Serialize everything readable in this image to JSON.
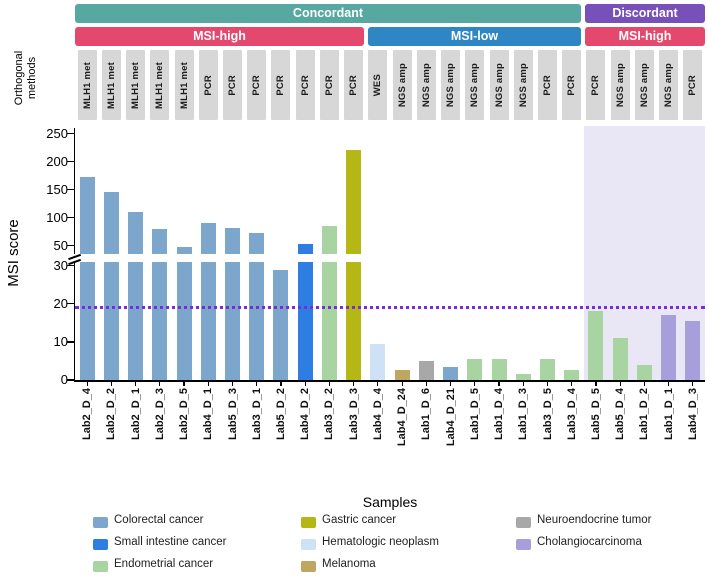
{
  "header": {
    "concordant": "Concordant",
    "discordant": "Discordant",
    "msi_high_left": "MSI-high",
    "msi_low": "MSI-low",
    "msi_high_right": "MSI-high",
    "orthogonal_methods": "Orthogonal methods"
  },
  "colors": {
    "concordant_banner": "#57a8a1",
    "discordant_banner": "#7750b9",
    "msi_high_banner": "#e5486d",
    "msi_low_banner": "#2e86c5",
    "method_box": "#d7d7d7",
    "discordant_background": "#e9e7f6",
    "threshold_line": "#7b2cd6",
    "axis": "#000000"
  },
  "cancer_colors": {
    "Colorectal cancer": "#7ca6cb",
    "Small intestine cancer": "#2d7de2",
    "Endometrial cancer": "#a8d4a1",
    "Gastric cancer": "#b5b714",
    "Hematologic neoplasm": "#cfe1f4",
    "Melanoma": "#c0a75f",
    "Neuroendocrine tumor": "#a8a8a8",
    "Cholangiocarcinoma": "#a79fdb"
  },
  "chart_data": {
    "type": "bar",
    "title": "",
    "ylabel": "MSI score",
    "xlabel": "Samples",
    "y_axis": {
      "upper_ticks": [
        250,
        200,
        150,
        100,
        50
      ],
      "lower_ticks": [
        30,
        20,
        10,
        0
      ],
      "break_note": "y-axis broken between 30 and 50"
    },
    "threshold_value": 19,
    "grid": false,
    "groups": [
      {
        "concordance": "Concordant",
        "msi_status": "MSI-high",
        "sample_count": 12
      },
      {
        "concordance": "Concordant",
        "msi_status": "MSI-low",
        "sample_count": 9
      },
      {
        "concordance": "Discordant",
        "msi_status": "MSI-high",
        "sample_count": 5
      }
    ],
    "samples": [
      {
        "name": "Lab2_D_4",
        "method": "MLH1 met",
        "value": 172,
        "type": "Colorectal cancer"
      },
      {
        "name": "Lab2_D_2",
        "method": "MLH1 met",
        "value": 145,
        "type": "Colorectal cancer"
      },
      {
        "name": "Lab2_D_1",
        "method": "MLH1 met",
        "value": 110,
        "type": "Colorectal cancer"
      },
      {
        "name": "Lab2_D_3",
        "method": "MLH1 met",
        "value": 80,
        "type": "Colorectal cancer"
      },
      {
        "name": "Lab2_D_5",
        "method": "MLH1 met",
        "value": 47,
        "type": "Colorectal cancer"
      },
      {
        "name": "Lab4_D_1",
        "method": "PCR",
        "value": 90,
        "type": "Colorectal cancer"
      },
      {
        "name": "Lab5_D_3",
        "method": "PCR",
        "value": 82,
        "type": "Colorectal cancer"
      },
      {
        "name": "Lab3_D_1",
        "method": "PCR",
        "value": 72,
        "type": "Colorectal cancer"
      },
      {
        "name": "Lab5_D_2",
        "method": "PCR",
        "value": 29,
        "type": "Colorectal cancer"
      },
      {
        "name": "Lab4_D_2",
        "method": "PCR",
        "value": 52,
        "type": "Small intestine cancer"
      },
      {
        "name": "Lab3_D_2",
        "method": "PCR",
        "value": 85,
        "type": "Endometrial cancer"
      },
      {
        "name": "Lab3_D_3",
        "method": "PCR",
        "value": 220,
        "type": "Gastric cancer"
      },
      {
        "name": "Lab4_D_4",
        "method": "WES",
        "value": 9.5,
        "type": "Hematologic neoplasm"
      },
      {
        "name": "Lab4_D_24",
        "method": "NGS amp",
        "value": 2.5,
        "type": "Melanoma"
      },
      {
        "name": "Lab1_D_6",
        "method": "NGS amp",
        "value": 5,
        "type": "Neuroendocrine tumor"
      },
      {
        "name": "Lab4_D_21",
        "method": "NGS amp",
        "value": 3.5,
        "type": "Colorectal cancer"
      },
      {
        "name": "Lab1_D_5",
        "method": "NGS amp",
        "value": 5.5,
        "type": "Endometrial cancer"
      },
      {
        "name": "Lab1_D_4",
        "method": "NGS amp",
        "value": 5.5,
        "type": "Endometrial cancer"
      },
      {
        "name": "Lab1_D_3",
        "method": "NGS amp",
        "value": 1.5,
        "type": "Endometrial cancer"
      },
      {
        "name": "Lab3_D_5",
        "method": "PCR",
        "value": 5.5,
        "type": "Endometrial cancer"
      },
      {
        "name": "Lab3_D_4",
        "method": "PCR",
        "value": 2.5,
        "type": "Endometrial cancer"
      },
      {
        "name": "Lab5_D_5",
        "method": "PCR",
        "value": 18,
        "type": "Endometrial cancer"
      },
      {
        "name": "Lab5_D_4",
        "method": "NGS amp",
        "value": 11,
        "type": "Endometrial cancer"
      },
      {
        "name": "Lab1_D_2",
        "method": "NGS amp",
        "value": 4,
        "type": "Endometrial cancer"
      },
      {
        "name": "Lab1_D_1",
        "method": "NGS amp",
        "value": 17,
        "type": "Cholangiocarcinoma"
      },
      {
        "name": "Lab4_D_3",
        "method": "PCR",
        "value": 15.5,
        "type": "Cholangiocarcinoma"
      }
    ]
  },
  "legend": {
    "columns": [
      [
        "Colorectal cancer",
        "Small intestine cancer",
        "Endometrial cancer"
      ],
      [
        "Gastric cancer",
        "Hematologic neoplasm",
        "Melanoma"
      ],
      [
        "Neuroendocrine tumor",
        "Cholangiocarcinoma"
      ]
    ]
  }
}
